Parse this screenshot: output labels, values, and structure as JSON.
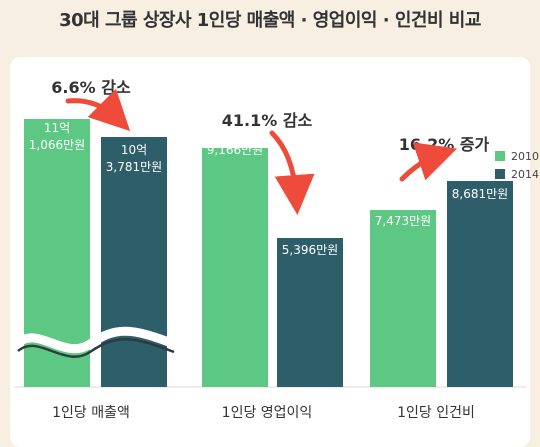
{
  "title": "30대 그룹 상장사 1인당 매출액 · 영업이익 · 인건비 비교",
  "colors": {
    "s2010": "#5dc883",
    "s2014": "#2f5e6b",
    "arrow": "#ef4b3b"
  },
  "chart_data": {
    "type": "bar",
    "categories": [
      "1인당 매출액",
      "1인당 영업이익",
      "1인당 인건비"
    ],
    "series": [
      {
        "name": "2010",
        "labels": [
          "11억\n1,066만원",
          "9,166만원",
          "7,473만원"
        ]
      },
      {
        "name": "2014",
        "labels": [
          "10억\n3,781만원",
          "5,396만원",
          "8,681만원"
        ]
      }
    ],
    "annotations": [
      "6.6% 감소",
      "41.1% 감소",
      "16.2% 증가"
    ],
    "axis_break": true,
    "legend_position": "top-right"
  }
}
